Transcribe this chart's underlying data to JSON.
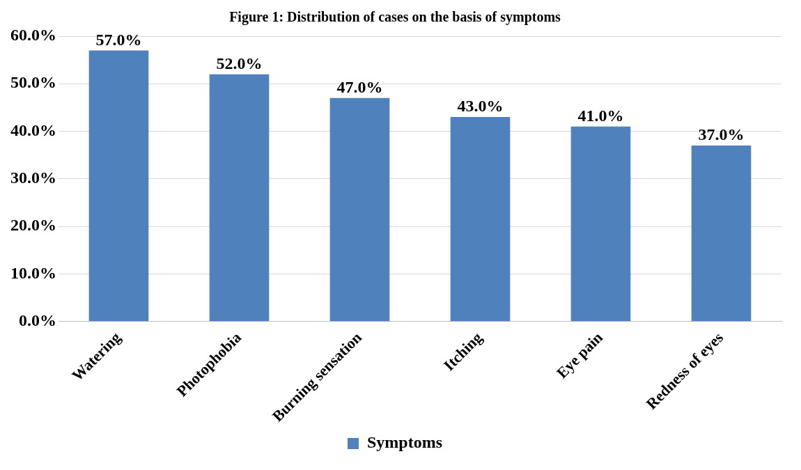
{
  "chart_data": {
    "type": "bar",
    "title": "Figure 1: Distribution of cases on the basis of symptoms",
    "categories": [
      "Watering",
      "Photophobia",
      "Burning sensation",
      "Itching",
      "Eye pain",
      "Redness of eyes"
    ],
    "series": [
      {
        "name": "Symptoms",
        "color": "#4f81bd",
        "values": [
          57,
          52,
          47,
          43,
          41,
          37
        ],
        "value_labels": [
          "57.0%",
          "52.0%",
          "47.0%",
          "43.0%",
          "41.0%",
          "37.0%"
        ]
      }
    ],
    "ylim": [
      0,
      60
    ],
    "yticks": [
      {
        "value": 0,
        "label": "0.0%"
      },
      {
        "value": 10,
        "label": "10.0%"
      },
      {
        "value": 20,
        "label": "20.0%"
      },
      {
        "value": 30,
        "label": "30.0%"
      },
      {
        "value": 40,
        "label": "40.0%"
      },
      {
        "value": 50,
        "label": "50.0%"
      },
      {
        "value": 60,
        "label": "60.0%"
      }
    ],
    "grid": "y",
    "legend": "bottom"
  }
}
